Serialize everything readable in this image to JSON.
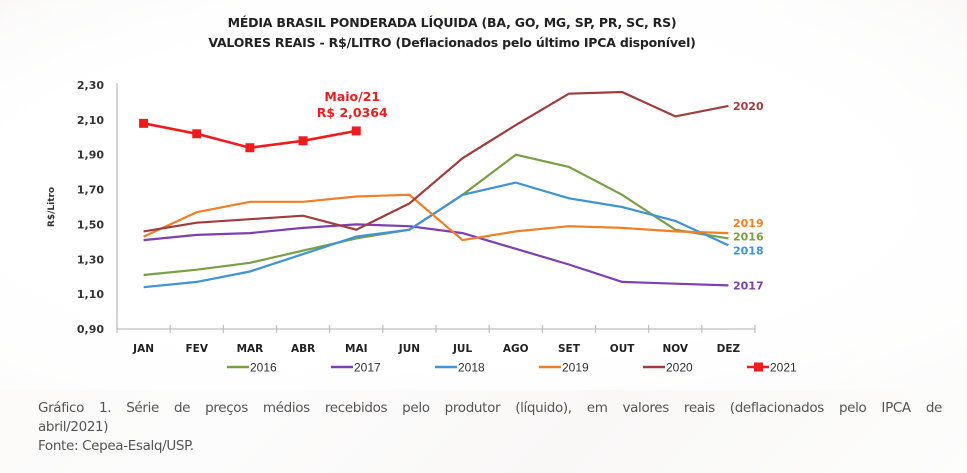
{
  "chart_data": {
    "type": "line",
    "title": "MÉDIA BRASIL PONDERADA LÍQUIDA (BA, GO, MG, SP, PR, SC, RS)",
    "subtitle": "VALORES REAIS - R$/LITRO (Deflacionados pelo último IPCA disponível)",
    "xlabel": "",
    "ylabel": "R$/Litro",
    "ylim": [
      0.9,
      2.3
    ],
    "yticks": [
      "0,90",
      "1,10",
      "1,30",
      "1,50",
      "1,70",
      "1,90",
      "2,10",
      "2,30"
    ],
    "ytick_values": [
      0.9,
      1.1,
      1.3,
      1.5,
      1.7,
      1.9,
      2.1,
      2.3
    ],
    "grid": false,
    "legend_position": "bottom",
    "categories": [
      "JAN",
      "FEV",
      "MAR",
      "ABR",
      "MAI",
      "JUN",
      "JUL",
      "AGO",
      "SET",
      "OUT",
      "NOV",
      "DEZ"
    ],
    "series": [
      {
        "name": "2016",
        "color": "#77a143",
        "marker": "none",
        "end_label": "2016",
        "values": [
          1.21,
          1.24,
          1.28,
          1.35,
          1.42,
          1.47,
          1.67,
          1.9,
          1.83,
          1.67,
          1.47,
          1.42
        ]
      },
      {
        "name": "2017",
        "color": "#7e3fb0",
        "marker": "none",
        "end_label": "2017",
        "values": [
          1.41,
          1.44,
          1.45,
          1.48,
          1.5,
          1.49,
          1.45,
          1.36,
          1.27,
          1.17,
          1.16,
          1.15
        ]
      },
      {
        "name": "2018",
        "color": "#3f93d6",
        "marker": "none",
        "end_label": "2018",
        "values": [
          1.14,
          1.17,
          1.23,
          1.33,
          1.43,
          1.47,
          1.67,
          1.74,
          1.65,
          1.6,
          1.52,
          1.38
        ]
      },
      {
        "name": "2019",
        "color": "#f07f27",
        "marker": "none",
        "end_label": "2019",
        "values": [
          1.43,
          1.57,
          1.63,
          1.63,
          1.66,
          1.67,
          1.41,
          1.46,
          1.49,
          1.48,
          1.46,
          1.45
        ]
      },
      {
        "name": "2020",
        "color": "#a23c3c",
        "marker": "none",
        "end_label": "2020",
        "values": [
          1.46,
          1.51,
          1.53,
          1.55,
          1.47,
          1.62,
          1.88,
          2.07,
          2.25,
          2.26,
          2.12,
          2.18
        ]
      },
      {
        "name": "2021",
        "color": "#ee1c1c",
        "marker": "square",
        "end_label": "",
        "values": [
          2.08,
          2.02,
          1.94,
          1.98,
          2.0364
        ]
      }
    ],
    "annotations": [
      {
        "text_line1": "Maio/21",
        "text_line2": "R$ 2,0364",
        "category": "MAI",
        "series": "2021",
        "color": "#ee1c1c"
      }
    ]
  },
  "caption": {
    "line1": "Gráfico 1. Série de preços médios recebidos pelo produtor (líquido), em valores reais (deflacionados pelo IPCA de",
    "line2": "abril/2021)",
    "source": "Fonte: Cepea-Esalq/USP."
  }
}
